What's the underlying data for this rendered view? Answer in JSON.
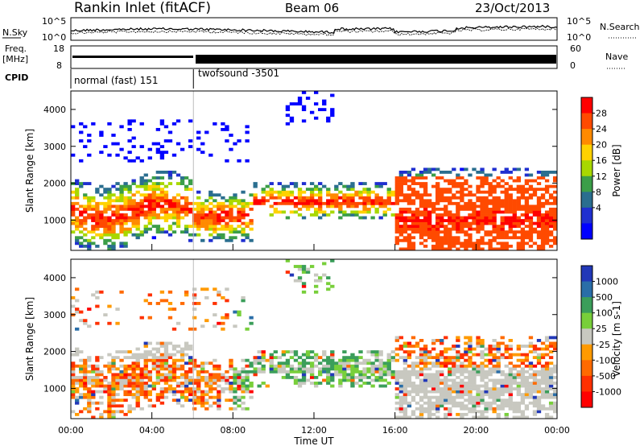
{
  "header": {
    "station": "Rankin Inlet (fitACF)",
    "beam": "Beam 06",
    "date": "23/Oct/2013"
  },
  "strip": {
    "nsky_label": "N.Sky",
    "nsky_ticks": [
      "10^5",
      "10^0"
    ],
    "nsearch_label": "N.Search",
    "nsearch_ticks": [
      "10^5",
      "10^0"
    ],
    "freq_label": "Freq.",
    "freq_unit": "[MHz]",
    "freq_ticks": [
      "18",
      "8"
    ],
    "nave_label": "Nave",
    "nave_ticks": [
      "60",
      "0"
    ],
    "cpid_label": "CPID",
    "cpid_modes": [
      "normal (fast) 151",
      "twofsound -3501"
    ],
    "cpid_change_hour": 6.05
  },
  "chart_data": [
    {
      "type": "heatmap",
      "name": "power-panel",
      "ylabel": "Slant Range [km]",
      "yticks": [
        1000,
        2000,
        3000,
        4000
      ],
      "ylim": [
        180,
        4500
      ],
      "xlim": [
        0,
        24
      ],
      "colorbar": {
        "label": "Power [dB]",
        "ticks": [
          "28",
          "24",
          "20",
          "16",
          "12",
          "8",
          "4"
        ],
        "colors": [
          "#ff0000",
          "#ff4a00",
          "#ff8a00",
          "#ffd200",
          "#a8d800",
          "#3b9e48",
          "#2a6e8f",
          "#1f2fd0",
          "#0000ff"
        ]
      }
    },
    {
      "type": "heatmap",
      "name": "velocity-panel",
      "ylabel": "Slant Range [km]",
      "yticks": [
        1000,
        2000,
        3000,
        4000
      ],
      "ylim": [
        180,
        4500
      ],
      "xlim": [
        0,
        24
      ],
      "colorbar": {
        "label": "Velocity [m s-1]",
        "ticks": [
          "1000",
          "500",
          "100",
          "25",
          "-25",
          "-100",
          "-500",
          "-1000"
        ],
        "colors": [
          "#2238b8",
          "#2a6ea8",
          "#3b9e5a",
          "#78cf3a",
          "#c8c8c0",
          "#ff9a00",
          "#ff6a00",
          "#ff3000",
          "#ff0000"
        ]
      }
    }
  ],
  "xaxis": {
    "label": "Time UT",
    "ticks": [
      "00:00",
      "04:00",
      "08:00",
      "12:00",
      "16:00",
      "20:00",
      "00:00"
    ]
  }
}
